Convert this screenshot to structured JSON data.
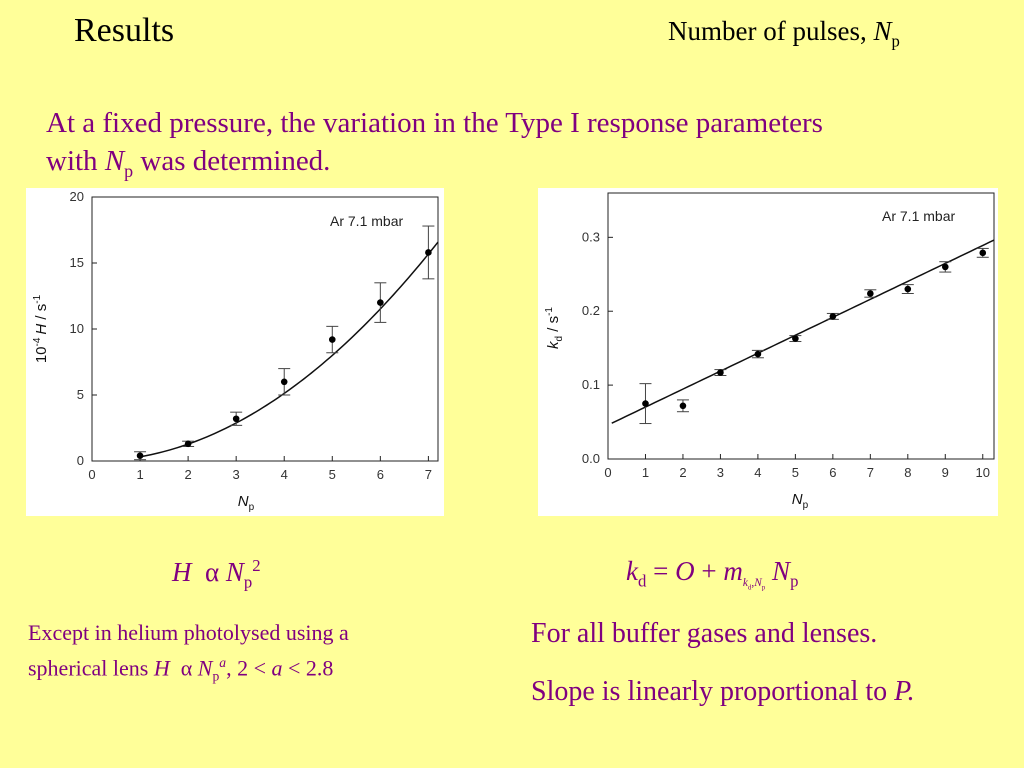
{
  "header": {
    "title": "Results",
    "subtitle_main": "Number of pulses, ",
    "subtitle_symbol": "N",
    "subtitle_sub": "p"
  },
  "intro": {
    "line1": "At a fixed pressure, the variation in the Type I response parameters",
    "line2_pre": "with ",
    "line2_symbol": "N",
    "line2_sub": "p",
    "line2_post": " was determined."
  },
  "formula_left": {
    "lhs": "H",
    "relation": "α",
    "rhs": "N",
    "rhs_sub": "p",
    "rhs_sup": "2"
  },
  "formula_right": {
    "lhs": "k",
    "lhs_sub": "d",
    "eq": " = ",
    "offset": "O",
    "plus": " + ",
    "slope": "m",
    "slope_sub_k": "k",
    "slope_sub_d": "d",
    "slope_sub_comma": ",",
    "slope_sub_N": "N",
    "slope_sub_p": "p",
    "var": "N",
    "var_sub": "p"
  },
  "caption_left": {
    "line1": "Except in helium photolysed using a",
    "line2_pre": "spherical lens ",
    "line2_H": "H",
    "line2_alpha": "α",
    "line2_N": "N",
    "line2_sub": "p",
    "line2_sup": "a",
    "line2_mid": ", 2 < ",
    "line2_a": "a",
    "line2_post": " < 2.8"
  },
  "caption_right": {
    "line1": "For all buffer gases and lenses.",
    "line2_pre": "Slope is linearly proportional to ",
    "line2_symbol": "P.",
    "line2_post": ""
  },
  "colors": {
    "background": "#FFFF99",
    "text_accent": "#800080",
    "plot_background": "#FFFFFF",
    "data": "#000000"
  },
  "chart_data": [
    {
      "type": "scatter",
      "annotation": "Ar 7.1 mbar",
      "ylabel_prefix": "10",
      "ylabel_exp": "-4",
      "ylabel_var": "H",
      "ylabel_unit": " / s",
      "ylabel_unit_exp": "-1",
      "xlabel_var": "N",
      "xlabel_sub": "p",
      "xlim": [
        0,
        7.2
      ],
      "ylim": [
        0,
        20
      ],
      "xticks": [
        0,
        1,
        2,
        3,
        4,
        5,
        6,
        7
      ],
      "yticks": [
        0,
        5,
        10,
        15,
        20
      ],
      "grid": false,
      "series": [
        {
          "x": [
            1,
            2,
            3,
            4,
            5,
            6,
            7
          ],
          "y": [
            0.4,
            1.3,
            3.2,
            6.0,
            9.2,
            12.0,
            15.8
          ],
          "yerr": [
            0.3,
            0.2,
            0.5,
            1.0,
            1.0,
            1.5,
            2.0
          ]
        }
      ],
      "fit": {
        "type": "power",
        "coefficient": 0.32,
        "exponent": 2,
        "x_range": [
          1,
          7.2
        ]
      }
    },
    {
      "type": "scatter",
      "annotation": "Ar 7.1 mbar",
      "ylabel_var": "k",
      "ylabel_sub": "d",
      "ylabel_unit": " / s",
      "ylabel_unit_exp": "-1",
      "xlabel_var": "N",
      "xlabel_sub": "p",
      "xlim": [
        0,
        10.3
      ],
      "ylim": [
        0,
        0.36
      ],
      "xticks": [
        0,
        1,
        2,
        3,
        4,
        5,
        6,
        7,
        8,
        9,
        10
      ],
      "yticks": [
        0.0,
        0.1,
        0.2,
        0.3
      ],
      "ytick_labels": [
        "0.0",
        "0.1",
        "0.2",
        "0.3"
      ],
      "grid": false,
      "series": [
        {
          "x": [
            1,
            2,
            3,
            4,
            5,
            6,
            7,
            8,
            9,
            10
          ],
          "y": [
            0.075,
            0.072,
            0.117,
            0.142,
            0.163,
            0.193,
            0.224,
            0.23,
            0.26,
            0.279
          ],
          "yerr": [
            0.027,
            0.008,
            0.004,
            0.005,
            0.004,
            0.004,
            0.005,
            0.006,
            0.007,
            0.006
          ]
        }
      ],
      "fit": {
        "type": "linear",
        "intercept": 0.046,
        "slope": 0.0243,
        "x_range": [
          0.1,
          10.3
        ]
      }
    }
  ]
}
